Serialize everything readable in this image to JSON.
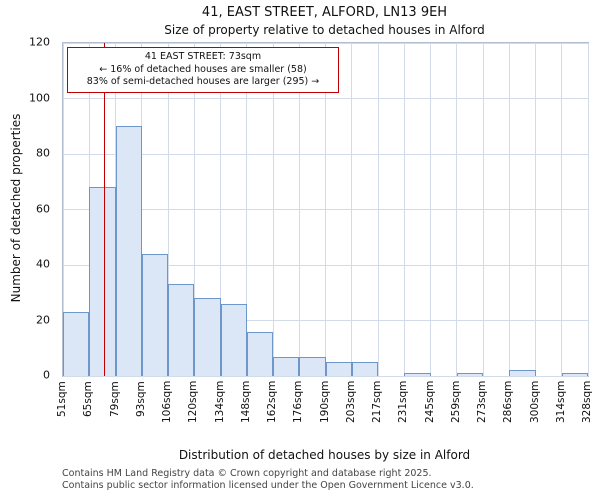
{
  "title": "41, EAST STREET, ALFORD, LN13 9EH",
  "subtitle": "Size of property relative to detached houses in Alford",
  "annotation": {
    "line1": "41 EAST STREET: 73sqm",
    "line2": "← 16% of detached houses are smaller (58)",
    "line3": "83% of semi-detached houses are larger (295) →"
  },
  "footer": {
    "line1": "Contains HM Land Registry data © Crown copyright and database right 2025.",
    "line2": "Contains public sector information licensed under the Open Government Licence v3.0."
  },
  "chart_data": {
    "type": "bar",
    "title": "41, EAST STREET, ALFORD, LN13 9EH",
    "subtitle": "Size of property relative to detached houses in Alford",
    "xlabel": "Distribution of detached houses by size in Alford",
    "ylabel": "Number of detached properties",
    "bin_edges_sqm": [
      51,
      65,
      79,
      93,
      106,
      120,
      134,
      148,
      162,
      176,
      190,
      203,
      217,
      231,
      245,
      259,
      273,
      286,
      300,
      314,
      328
    ],
    "tick_labels": [
      "51sqm",
      "65sqm",
      "79sqm",
      "93sqm",
      "106sqm",
      "120sqm",
      "134sqm",
      "148sqm",
      "162sqm",
      "176sqm",
      "190sqm",
      "203sqm",
      "217sqm",
      "231sqm",
      "245sqm",
      "259sqm",
      "273sqm",
      "286sqm",
      "300sqm",
      "314sqm",
      "328sqm"
    ],
    "values": [
      23,
      68,
      90,
      44,
      33,
      28,
      26,
      16,
      7,
      7,
      5,
      5,
      0,
      1,
      0,
      1,
      0,
      2,
      0,
      1
    ],
    "ylim": [
      0,
      120
    ],
    "yticks": [
      0,
      20,
      40,
      60,
      80,
      100,
      120
    ],
    "grid": true,
    "legend": "none",
    "marker_sqm": 73,
    "marker_color": "#c00000",
    "bar_fill": "#dbe7f6",
    "bar_border": "#6d96c9",
    "grid_color": "#d2dbea"
  }
}
